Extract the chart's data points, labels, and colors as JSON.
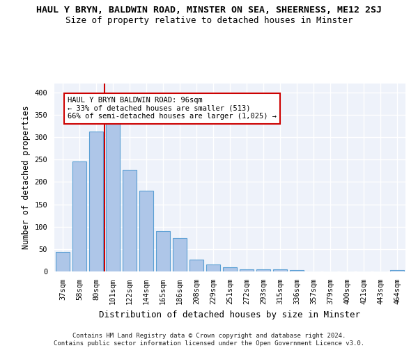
{
  "title_line1": "HAUL Y BRYN, BALDWIN ROAD, MINSTER ON SEA, SHEERNESS, ME12 2SJ",
  "title_line2": "Size of property relative to detached houses in Minster",
  "xlabel": "Distribution of detached houses by size in Minster",
  "ylabel": "Number of detached properties",
  "categories": [
    "37sqm",
    "58sqm",
    "80sqm",
    "101sqm",
    "122sqm",
    "144sqm",
    "165sqm",
    "186sqm",
    "208sqm",
    "229sqm",
    "251sqm",
    "272sqm",
    "293sqm",
    "315sqm",
    "336sqm",
    "357sqm",
    "379sqm",
    "400sqm",
    "421sqm",
    "443sqm",
    "464sqm"
  ],
  "values": [
    44,
    246,
    313,
    333,
    227,
    180,
    90,
    75,
    26,
    15,
    9,
    4,
    5,
    5,
    3,
    0,
    0,
    0,
    0,
    0,
    3
  ],
  "bar_color": "#aec6e8",
  "bar_edge_color": "#5a9fd4",
  "vline_index": 2.5,
  "vline_color": "#cc0000",
  "annotation_text": "HAUL Y BRYN BALDWIN ROAD: 96sqm\n← 33% of detached houses are smaller (513)\n66% of semi-detached houses are larger (1,025) →",
  "annotation_box_facecolor": "#ffffff",
  "annotation_box_edgecolor": "#cc0000",
  "ylim": [
    0,
    420
  ],
  "yticks": [
    0,
    50,
    100,
    150,
    200,
    250,
    300,
    350,
    400
  ],
  "plot_bg_color": "#eef2fa",
  "grid_color": "#ffffff",
  "footer": "Contains HM Land Registry data © Crown copyright and database right 2024.\nContains public sector information licensed under the Open Government Licence v3.0.",
  "title_fontsize": 9.5,
  "subtitle_fontsize": 9,
  "ylabel_fontsize": 8.5,
  "xlabel_fontsize": 9,
  "tick_fontsize": 7.5,
  "annotation_fontsize": 7.5,
  "footer_fontsize": 6.5
}
